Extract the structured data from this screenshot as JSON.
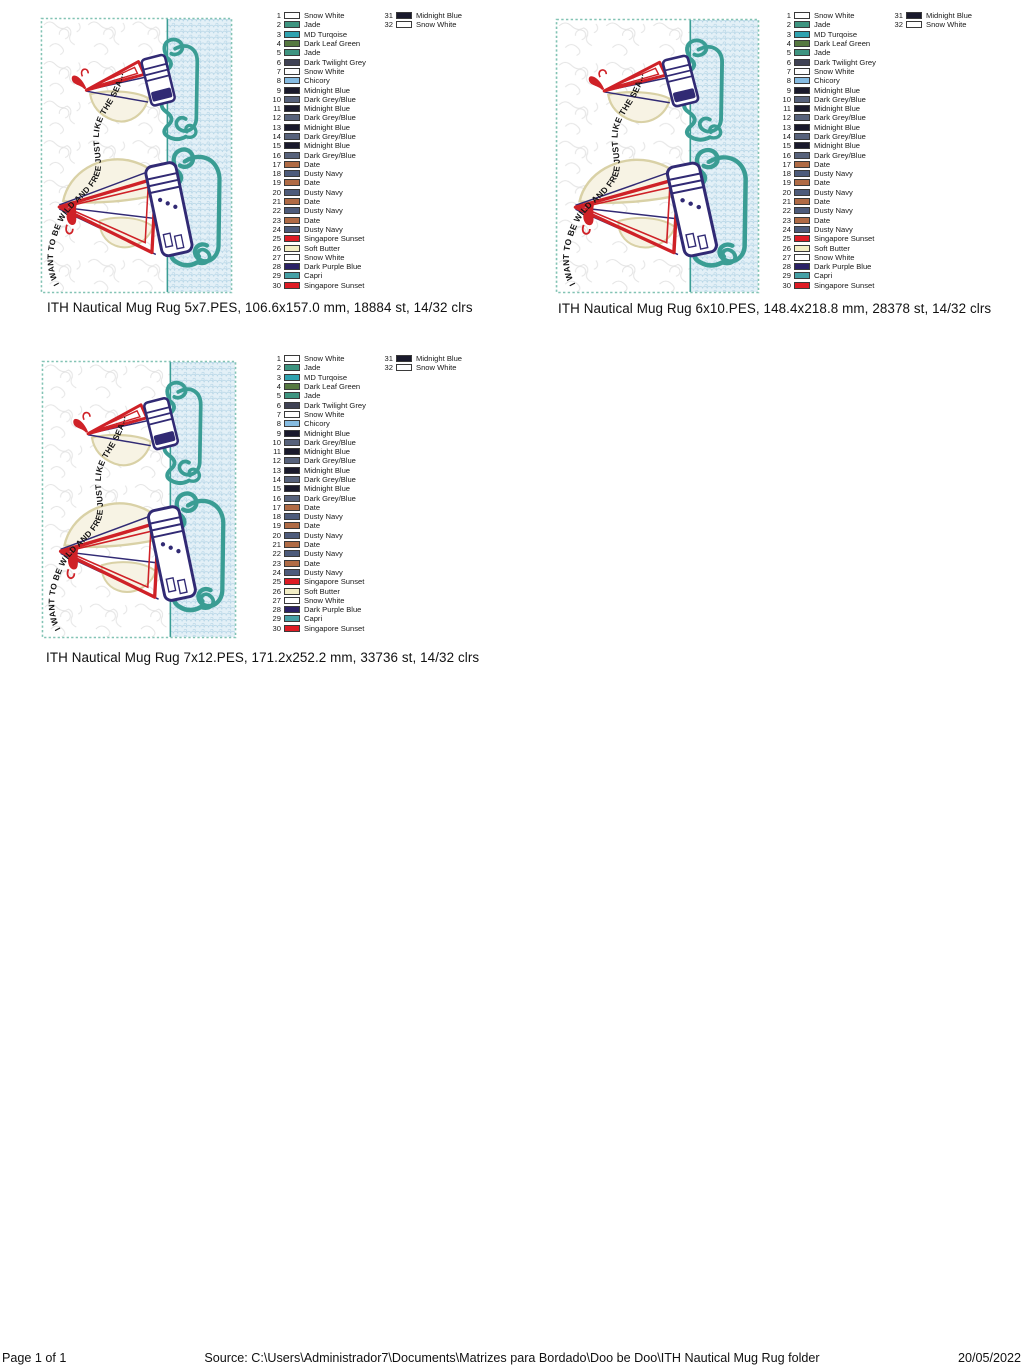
{
  "design_common": {
    "phrase": "I WANT TO BE WILD AND FREE JUST LIKE THE SEA...",
    "colors": {
      "teal": "#3A9D94",
      "navy": "#312A74",
      "red": "#CF2127",
      "cream": "#F7F3E4",
      "cream_edge": "#D9D1A6",
      "band_bg": "#E3F0F7",
      "band_wave": "#B0D2E4",
      "border_dash": "#82C3B4",
      "stipple": "#E4E4E4"
    }
  },
  "designs": [
    {
      "caption": "ITH Nautical Mug Rug 5x7.PES, 106.6x157.0 mm, 18884 st, 14/32 clrs"
    },
    {
      "caption": "ITH Nautical Mug Rug 6x10.PES, 148.4x218.8 mm, 28378 st, 14/32 clrs"
    },
    {
      "caption": "ITH Nautical Mug Rug 7x12.PES, 171.2x252.2 mm, 33736 st, 14/32 clrs"
    }
  ],
  "threads": [
    {
      "n": "1",
      "name": "Snow White",
      "color": "#FFFFFF"
    },
    {
      "n": "2",
      "name": "Jade",
      "color": "#3E9480"
    },
    {
      "n": "3",
      "name": "MD Turqoise",
      "color": "#31A3B0"
    },
    {
      "n": "4",
      "name": "Dark Leaf Green",
      "color": "#567840"
    },
    {
      "n": "5",
      "name": "Jade",
      "color": "#3E9480"
    },
    {
      "n": "6",
      "name": "Dark Twilight Grey",
      "color": "#3F4254"
    },
    {
      "n": "7",
      "name": "Snow White",
      "color": "#FFFFFF"
    },
    {
      "n": "8",
      "name": "Chicory",
      "color": "#86BCE2"
    },
    {
      "n": "9",
      "name": "Midnight Blue",
      "color": "#1A1A2C"
    },
    {
      "n": "10",
      "name": "Dark Grey/Blue",
      "color": "#57627B"
    },
    {
      "n": "11",
      "name": "Midnight Blue",
      "color": "#1A1A2C"
    },
    {
      "n": "12",
      "name": "Dark Grey/Blue",
      "color": "#57627B"
    },
    {
      "n": "13",
      "name": "Midnight Blue",
      "color": "#1A1A2C"
    },
    {
      "n": "14",
      "name": "Dark Grey/Blue",
      "color": "#57627B"
    },
    {
      "n": "15",
      "name": "Midnight Blue",
      "color": "#1A1A2C"
    },
    {
      "n": "16",
      "name": "Dark Grey/Blue",
      "color": "#57627B"
    },
    {
      "n": "17",
      "name": "Date",
      "color": "#B06B45"
    },
    {
      "n": "18",
      "name": "Dusty Navy",
      "color": "#4D5B7B"
    },
    {
      "n": "19",
      "name": "Date",
      "color": "#B06B45"
    },
    {
      "n": "20",
      "name": "Dusty Navy",
      "color": "#4D5B7B"
    },
    {
      "n": "21",
      "name": "Date",
      "color": "#B06B45"
    },
    {
      "n": "22",
      "name": "Dusty Navy",
      "color": "#4D5B7B"
    },
    {
      "n": "23",
      "name": "Date",
      "color": "#B06B45"
    },
    {
      "n": "24",
      "name": "Dusty Navy",
      "color": "#4D5B7B"
    },
    {
      "n": "25",
      "name": "Singapore Sunset",
      "color": "#DD1B24"
    },
    {
      "n": "26",
      "name": "Soft Butter",
      "color": "#F4EFC6"
    },
    {
      "n": "27",
      "name": "Snow White",
      "color": "#FFFFFF"
    },
    {
      "n": "28",
      "name": "Dark Purple Blue",
      "color": "#2B2166"
    },
    {
      "n": "29",
      "name": "Capri",
      "color": "#45A0A6"
    },
    {
      "n": "30",
      "name": "Singapore Sunset",
      "color": "#DD1B24"
    }
  ],
  "threads_col2": [
    {
      "n": "31",
      "name": "Midnight Blue",
      "color": "#1A1A2C"
    },
    {
      "n": "32",
      "name": "Snow White",
      "color": "#FFFFFF"
    }
  ],
  "footer": {
    "page_label": "Page 1 of 1",
    "source": "Source: C:\\Users\\Administrador7\\Documents\\Matrizes para Bordado\\Doo be Doo\\ITH Nautical Mug Rug folder",
    "date": "20/05/2022"
  }
}
